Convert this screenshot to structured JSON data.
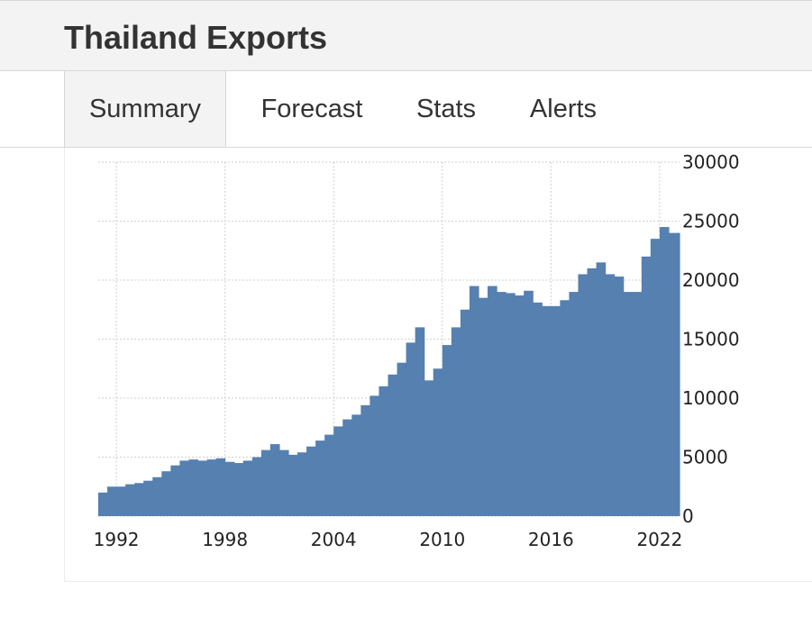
{
  "header": {
    "title": "Thailand Exports"
  },
  "tabs": [
    {
      "label": "Summary",
      "active": true
    },
    {
      "label": "Forecast",
      "active": false
    },
    {
      "label": "Stats",
      "active": false
    },
    {
      "label": "Alerts",
      "active": false
    }
  ],
  "colors": {
    "bars": "#5580b0",
    "header_bg": "#f3f3f3",
    "grid": "#cfcfcf"
  },
  "chart_data": {
    "type": "bar",
    "title": "",
    "xlabel": "",
    "ylabel": "",
    "ylim": [
      0,
      30000
    ],
    "y_ticks": [
      "0",
      "5000",
      "10000",
      "15000",
      "20000",
      "25000",
      "30000"
    ],
    "x_ticks": [
      "1992",
      "1998",
      "2004",
      "2010",
      "2016",
      "2022"
    ],
    "x_range": [
      1991.0,
      2023.1
    ],
    "grid": true,
    "yaxis_side": "right",
    "series": [
      {
        "values": [
          [
            1991.0,
            2000
          ],
          [
            1991.5,
            2500
          ],
          [
            1992.0,
            2500
          ],
          [
            1992.5,
            2700
          ],
          [
            1993.0,
            2800
          ],
          [
            1993.5,
            3000
          ],
          [
            1994.0,
            3300
          ],
          [
            1994.5,
            3800
          ],
          [
            1995.0,
            4300
          ],
          [
            1995.5,
            4700
          ],
          [
            1996.0,
            4800
          ],
          [
            1996.5,
            4700
          ],
          [
            1997.0,
            4800
          ],
          [
            1997.5,
            4900
          ],
          [
            1998.0,
            4600
          ],
          [
            1998.5,
            4500
          ],
          [
            1999.0,
            4700
          ],
          [
            1999.5,
            5000
          ],
          [
            2000.0,
            5600
          ],
          [
            2000.5,
            6100
          ],
          [
            2001.0,
            5600
          ],
          [
            2001.5,
            5200
          ],
          [
            2002.0,
            5400
          ],
          [
            2002.5,
            5900
          ],
          [
            2003.0,
            6400
          ],
          [
            2003.5,
            6900
          ],
          [
            2004.0,
            7600
          ],
          [
            2004.5,
            8200
          ],
          [
            2005.0,
            8600
          ],
          [
            2005.5,
            9400
          ],
          [
            2006.0,
            10200
          ],
          [
            2006.5,
            11000
          ],
          [
            2007.0,
            12000
          ],
          [
            2007.5,
            13000
          ],
          [
            2008.0,
            14700
          ],
          [
            2008.5,
            16000
          ],
          [
            2009.0,
            11500
          ],
          [
            2009.5,
            12500
          ],
          [
            2010.0,
            14500
          ],
          [
            2010.5,
            16000
          ],
          [
            2011.0,
            17500
          ],
          [
            2011.5,
            19500
          ],
          [
            2012.0,
            18500
          ],
          [
            2012.5,
            19500
          ],
          [
            2013.0,
            19000
          ],
          [
            2013.5,
            18900
          ],
          [
            2014.0,
            18700
          ],
          [
            2014.5,
            19100
          ],
          [
            2015.0,
            18100
          ],
          [
            2015.5,
            17800
          ],
          [
            2016.0,
            17800
          ],
          [
            2016.5,
            18300
          ],
          [
            2017.0,
            19000
          ],
          [
            2017.5,
            20500
          ],
          [
            2018.0,
            21000
          ],
          [
            2018.5,
            21500
          ],
          [
            2019.0,
            20500
          ],
          [
            2019.5,
            20300
          ],
          [
            2020.0,
            19000
          ],
          [
            2020.5,
            19000
          ],
          [
            2021.0,
            22000
          ],
          [
            2021.5,
            23500
          ],
          [
            2022.0,
            24500
          ],
          [
            2022.5,
            24000
          ],
          [
            2023.0,
            24000
          ]
        ]
      }
    ]
  }
}
